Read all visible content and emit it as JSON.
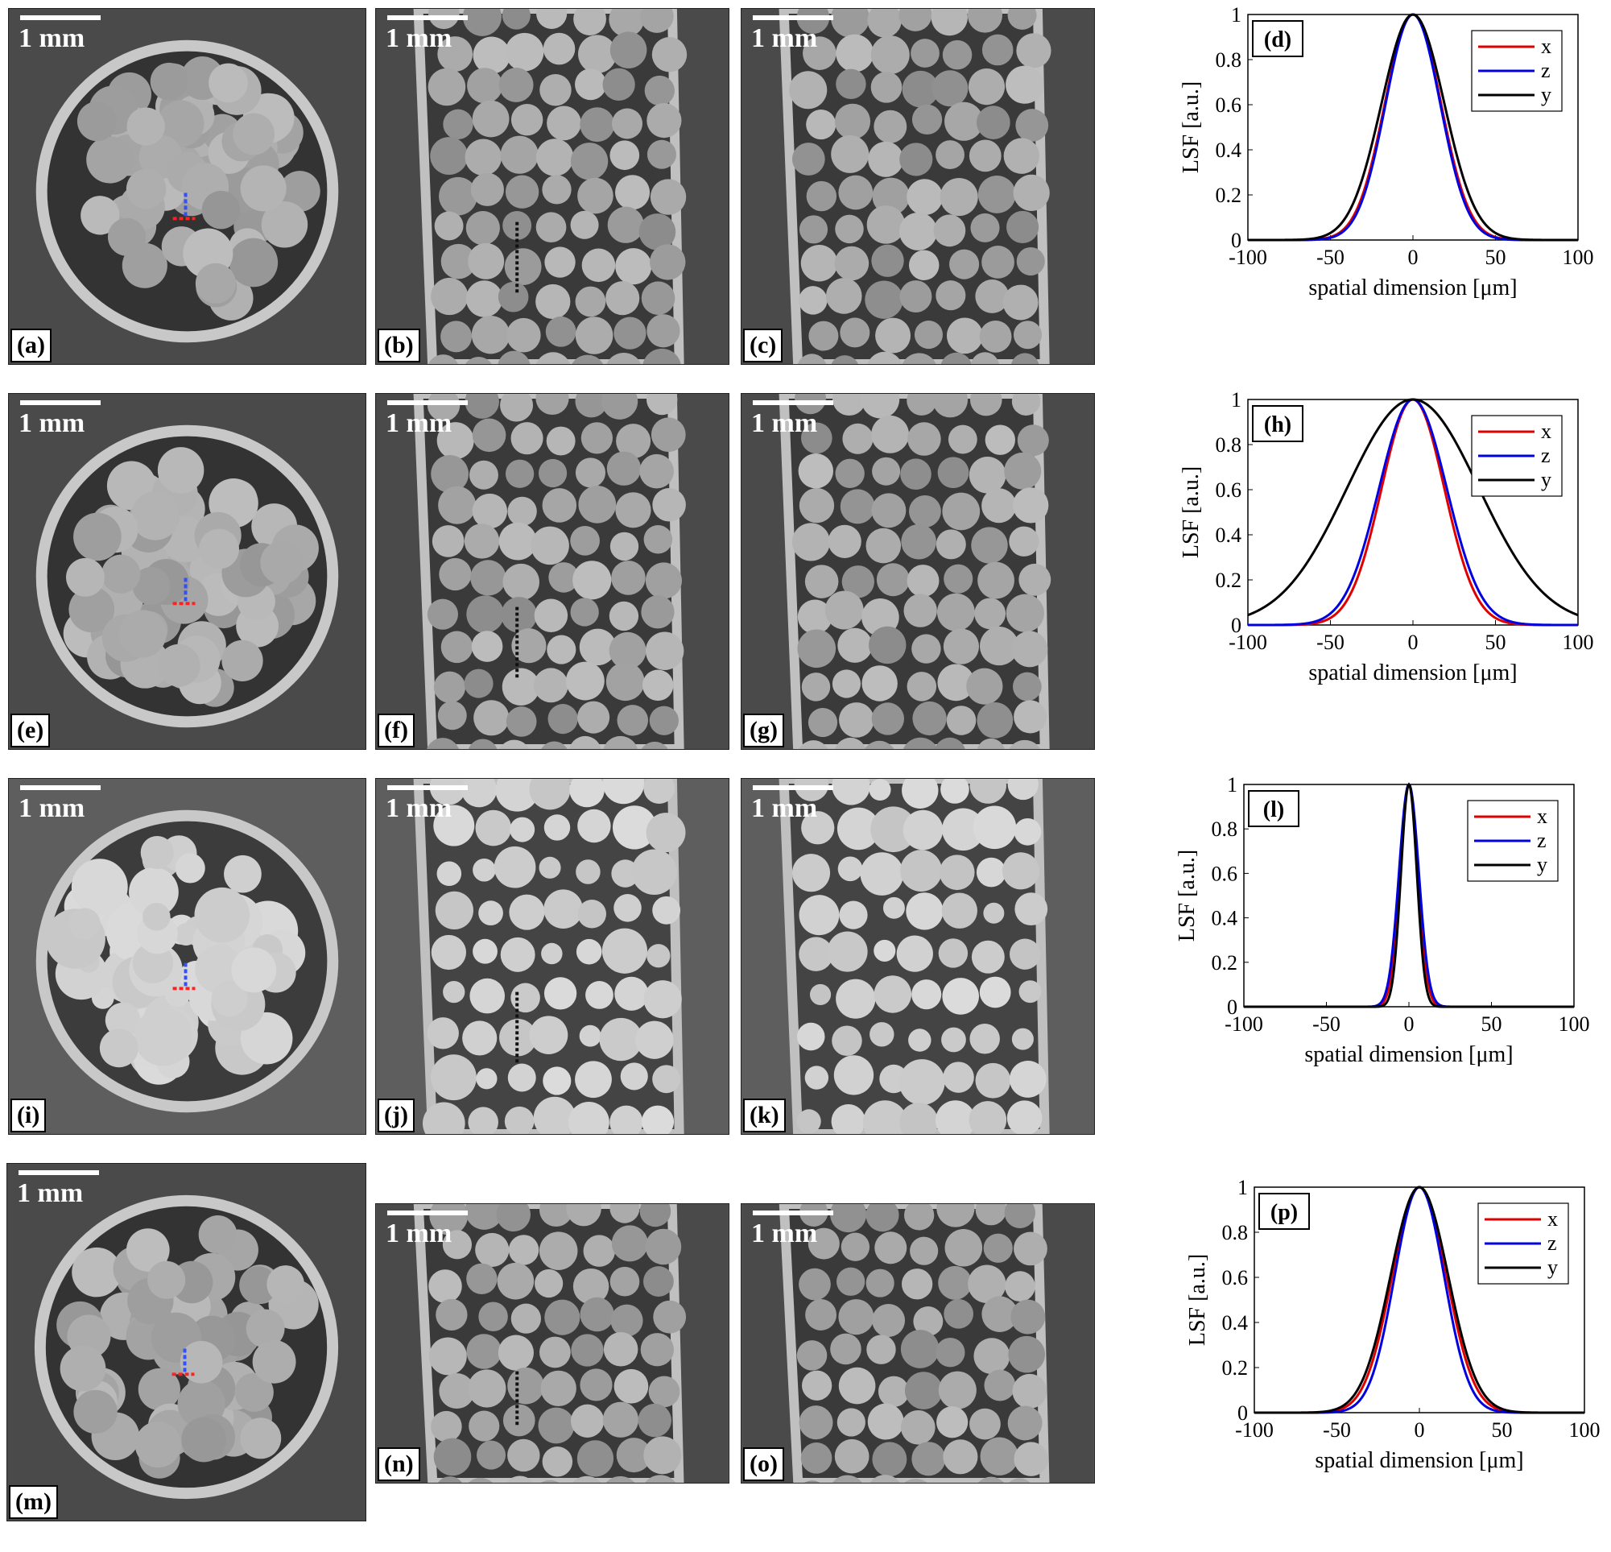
{
  "scale_bar_label": "1 mm",
  "image_panels": [
    {
      "id": "a",
      "label": "(a)",
      "kind": "round"
    },
    {
      "id": "b",
      "label": "(b)",
      "kind": "vertical"
    },
    {
      "id": "c",
      "label": "(c)",
      "kind": "vertical"
    },
    {
      "id": "e",
      "label": "(e)",
      "kind": "round"
    },
    {
      "id": "f",
      "label": "(f)",
      "kind": "vertical"
    },
    {
      "id": "g",
      "label": "(g)",
      "kind": "vertical"
    },
    {
      "id": "i",
      "label": "(i)",
      "kind": "round"
    },
    {
      "id": "j",
      "label": "(j)",
      "kind": "vertical"
    },
    {
      "id": "k",
      "label": "(k)",
      "kind": "vertical"
    },
    {
      "id": "m",
      "label": "(m)",
      "kind": "round"
    },
    {
      "id": "n",
      "label": "(n)",
      "kind": "vertical"
    },
    {
      "id": "o",
      "label": "(o)",
      "kind": "vertical"
    }
  ],
  "colors": {
    "x": "#e00000",
    "z": "#0000e0",
    "y": "#000000"
  },
  "chart_data": [
    {
      "type": "line",
      "panel_label": "(d)",
      "xlabel": "spatial dimension [μm]",
      "ylabel": "LSF [a.u.]",
      "xlim": [
        -100,
        100
      ],
      "ylim": [
        0,
        1
      ],
      "xticks": [
        -100,
        -50,
        0,
        50,
        100
      ],
      "yticks": [
        0,
        0.2,
        0.4,
        0.6,
        0.8,
        1
      ],
      "legend": "top-right",
      "series": [
        {
          "name": "x",
          "mu": 0,
          "sigma": 17
        },
        {
          "name": "z",
          "mu": 0,
          "sigma": 16.5
        },
        {
          "name": "y",
          "mu": 0,
          "sigma": 19
        }
      ]
    },
    {
      "type": "line",
      "panel_label": "(h)",
      "xlabel": "spatial dimension [μm]",
      "ylabel": "LSF [a.u.]",
      "xlim": [
        -100,
        100
      ],
      "ylim": [
        0,
        1
      ],
      "xticks": [
        -100,
        -50,
        0,
        50,
        100
      ],
      "yticks": [
        0,
        0.2,
        0.4,
        0.6,
        0.8,
        1
      ],
      "legend": "top-right",
      "series": [
        {
          "name": "x",
          "mu": 0,
          "sigma": 19
        },
        {
          "name": "z",
          "mu": 0,
          "sigma": 20.5
        },
        {
          "name": "y",
          "mu": 0,
          "sigma": 40
        }
      ]
    },
    {
      "type": "line",
      "panel_label": "(l)",
      "xlabel": "spatial dimension [μm]",
      "ylabel": "LSF [a.u.]",
      "xlim": [
        -100,
        100
      ],
      "ylim": [
        0,
        1
      ],
      "xticks": [
        -100,
        -50,
        0,
        50,
        100
      ],
      "yticks": [
        0,
        0.2,
        0.4,
        0.6,
        0.8,
        1
      ],
      "legend": "top-right",
      "series": [
        {
          "name": "x",
          "mu": 0,
          "sigma": 5.5
        },
        {
          "name": "z",
          "mu": 0,
          "sigma": 6
        },
        {
          "name": "y",
          "mu": 0,
          "sigma": 4.8
        }
      ]
    },
    {
      "type": "line",
      "panel_label": "(p)",
      "xlabel": "spatial dimension [μm]",
      "ylabel": "LSF [a.u.]",
      "xlim": [
        -100,
        100
      ],
      "ylim": [
        0,
        1
      ],
      "xticks": [
        -100,
        -50,
        0,
        50,
        100
      ],
      "yticks": [
        0,
        0.2,
        0.4,
        0.6,
        0.8,
        1
      ],
      "legend": "top-right",
      "series": [
        {
          "name": "x",
          "mu": 0,
          "sigma": 16.5
        },
        {
          "name": "z",
          "mu": 0,
          "sigma": 15
        },
        {
          "name": "y",
          "mu": 0,
          "sigma": 17.5
        }
      ]
    }
  ]
}
